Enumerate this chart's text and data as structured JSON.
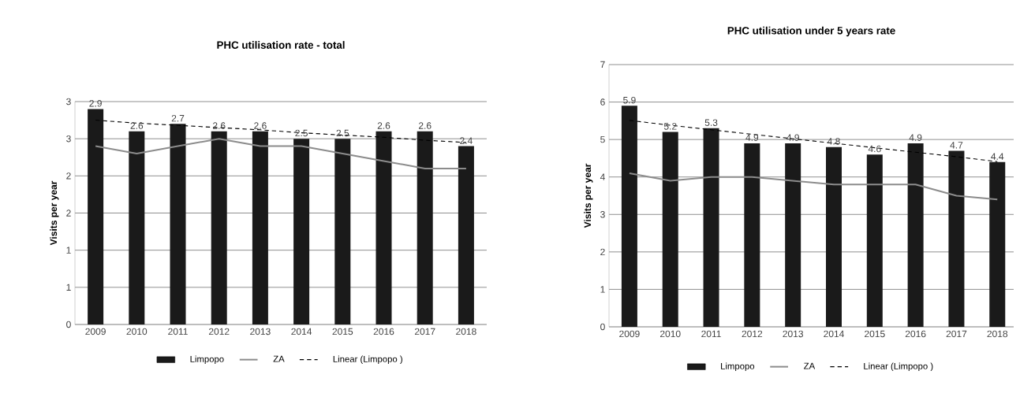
{
  "chart_data": [
    {
      "type": "bar",
      "title": "PHC utilisation rate - total",
      "ylabel": "Visits per year",
      "categories": [
        "2009",
        "2010",
        "2011",
        "2012",
        "2013",
        "2014",
        "2015",
        "2016",
        "2017",
        "2018"
      ],
      "series": [
        {
          "name": "Limpopo",
          "color": "#1a1a1a",
          "values": [
            2.9,
            2.6,
            2.7,
            2.6,
            2.6,
            2.5,
            2.5,
            2.6,
            2.6,
            2.4
          ],
          "value_labels": [
            "2.9",
            "2.6",
            "2.7",
            "2.6",
            "2.6",
            "2.5",
            "2.5",
            "2.6",
            "2.6",
            "2.4"
          ]
        },
        {
          "name": "ZA",
          "type": "line",
          "color": "#8c8c8c",
          "values": [
            2.4,
            2.3,
            2.4,
            2.5,
            2.4,
            2.4,
            2.3,
            2.2,
            2.1,
            2.1
          ]
        },
        {
          "name": "Linear (Limpopo )",
          "type": "line",
          "line_style": "dashed",
          "color": "#000000",
          "values": [
            2.75,
            2.71,
            2.68,
            2.65,
            2.62,
            2.58,
            2.55,
            2.52,
            2.48,
            2.45
          ]
        }
      ],
      "ylim": [
        0,
        3
      ],
      "yticks": [
        0,
        {
          "value": 0.5,
          "label": "1"
        },
        1,
        {
          "value": 1.5,
          "label": "2"
        },
        2,
        {
          "value": 2.5,
          "label": "3"
        },
        3
      ],
      "grid": "y",
      "legend": "bottom"
    },
    {
      "type": "bar",
      "title": "PHC utilisation under 5 years rate",
      "ylabel": "Visits per year",
      "categories": [
        "2009",
        "2010",
        "2011",
        "2012",
        "2013",
        "2014",
        "2015",
        "2016",
        "2017",
        "2018"
      ],
      "series": [
        {
          "name": "Limpopo",
          "color": "#1a1a1a",
          "values": [
            5.9,
            5.2,
            5.3,
            4.9,
            4.9,
            4.8,
            4.6,
            4.9,
            4.7,
            4.4
          ],
          "value_labels": [
            "5.9",
            "5.2",
            "5.3",
            "4.9",
            "4.9",
            "4.8",
            "4.6",
            "4.9",
            "4.7",
            "4.4"
          ]
        },
        {
          "name": "ZA",
          "type": "line",
          "color": "#8c8c8c",
          "values": [
            4.1,
            3.9,
            4.0,
            4.0,
            3.9,
            3.8,
            3.8,
            3.8,
            3.5,
            3.4
          ]
        },
        {
          "name": "Linear (Limpopo )",
          "type": "line",
          "line_style": "dashed",
          "color": "#000000",
          "values": [
            5.51,
            5.38,
            5.26,
            5.14,
            5.02,
            4.9,
            4.78,
            4.66,
            4.54,
            4.41
          ]
        }
      ],
      "ylim": [
        0,
        7
      ],
      "yticks": [
        0,
        1,
        2,
        3,
        4,
        5,
        6,
        7
      ],
      "grid": "y",
      "legend": "bottom"
    }
  ]
}
